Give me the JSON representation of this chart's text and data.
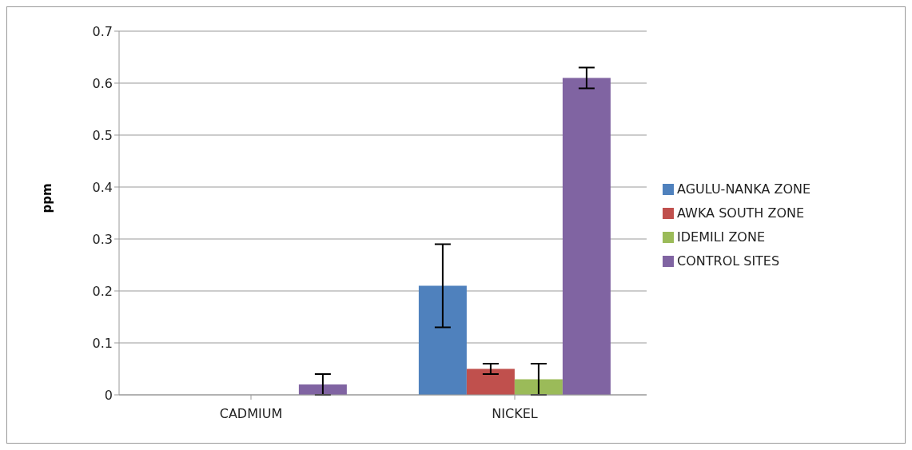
{
  "chart_data": {
    "type": "bar",
    "ylabel": "ppm",
    "categories": [
      "CADMIUM",
      "NICKEL"
    ],
    "series": [
      {
        "name": "AGULU-NANKA ZONE",
        "color": "#4f81bd",
        "values": [
          0,
          0.21
        ],
        "errors": [
          null,
          0.08
        ]
      },
      {
        "name": "AWKA SOUTH ZONE",
        "color": "#c0504d",
        "values": [
          0,
          0.05
        ],
        "errors": [
          null,
          0.01
        ]
      },
      {
        "name": "IDEMILI ZONE",
        "color": "#9bbb59",
        "values": [
          0,
          0.03
        ],
        "errors": [
          null,
          0.03
        ]
      },
      {
        "name": "CONTROL SITES",
        "color": "#8064a2",
        "values": [
          0.02,
          0.61
        ],
        "errors": [
          0.02,
          0.02
        ]
      }
    ],
    "ylim": [
      0,
      0.7
    ],
    "yticks": [
      0,
      0.1,
      0.2,
      0.3,
      0.4,
      0.5,
      0.6,
      0.7
    ],
    "grid": "y",
    "legend": "right"
  }
}
